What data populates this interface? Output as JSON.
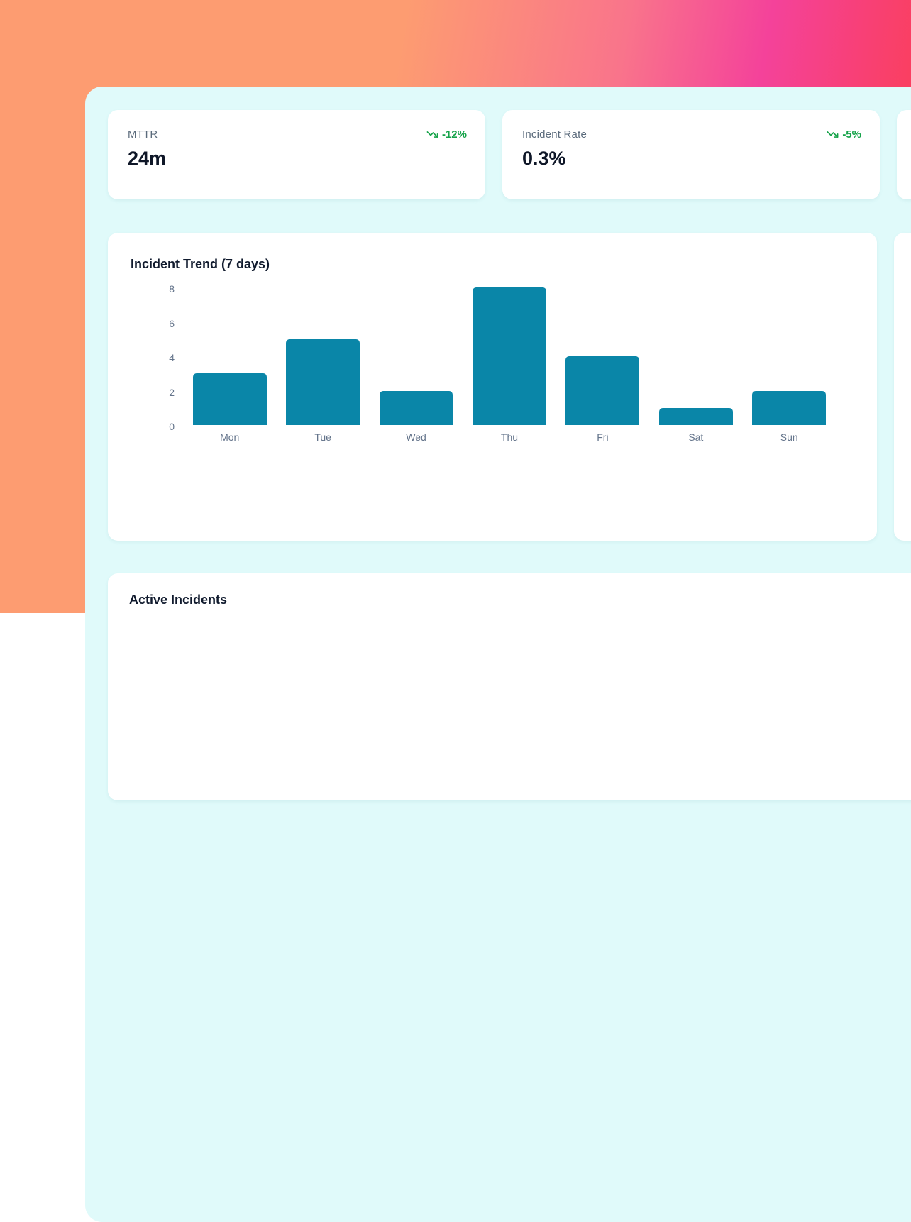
{
  "theme": {
    "bg_gradient": [
      "#fd9c71",
      "#f4429a",
      "#fd4347"
    ],
    "panel_bg": "#e0fafa",
    "card_bg": "#ffffff",
    "bar_color": "#0a86a8",
    "trend_color": "#16a34a",
    "label_color": "#5b6b7c",
    "value_color": "#0f1728"
  },
  "stats": [
    {
      "label": "MTTR",
      "value": "24m",
      "trend": "-12%",
      "trend_icon": "trending-down-icon"
    },
    {
      "label": "Incident Rate",
      "value": "0.3%",
      "trend": "-5%",
      "trend_icon": "trending-down-icon"
    }
  ],
  "chart_data": {
    "type": "bar",
    "title": "Incident Trend (7 days)",
    "categories": [
      "Mon",
      "Tue",
      "Wed",
      "Thu",
      "Fri",
      "Sat",
      "Sun"
    ],
    "values": [
      3,
      5,
      2,
      8,
      4,
      1,
      2
    ],
    "xlabel": "",
    "ylabel": "",
    "ylim": [
      0,
      8
    ],
    "yticks": [
      8,
      6,
      4,
      2,
      0
    ],
    "grid": false,
    "legend": false,
    "bar_color": "#0a86a8"
  },
  "sections": {
    "incidents_title": "Active Incidents"
  }
}
